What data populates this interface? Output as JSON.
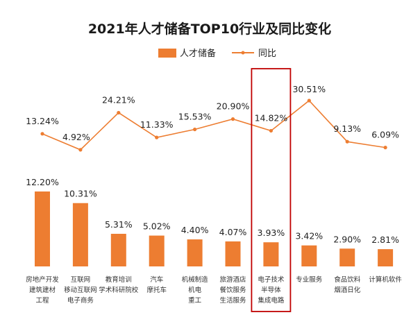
{
  "chart_data": {
    "type": "bar",
    "title": "2021年人才储备TOP10行业及同比变化",
    "legend": [
      "人才储备",
      "同比"
    ],
    "legend_position": "top-center",
    "categories": [
      [
        "房地产开发",
        "建筑建材",
        "工程"
      ],
      [
        "互联网",
        "移动互联网",
        "电子商务"
      ],
      [
        "教育培训",
        "学术科研院校"
      ],
      [
        "汽车",
        "摩托车"
      ],
      [
        "机械制造",
        "机电",
        "重工"
      ],
      [
        "旅游酒店",
        "餐饮服务",
        "生活服务"
      ],
      [
        "电子技术",
        "半导体",
        "集成电路"
      ],
      [
        "专业服务"
      ],
      [
        "食品饮料",
        "烟酒日化"
      ],
      [
        "计算机软件"
      ]
    ],
    "series": [
      {
        "name": "人才储备",
        "type": "bar",
        "values": [
          12.2,
          10.31,
          5.31,
          5.02,
          4.4,
          4.07,
          3.93,
          3.42,
          2.9,
          2.81
        ],
        "labels": [
          "12.20%",
          "10.31%",
          "5.31%",
          "5.02%",
          "4.40%",
          "4.07%",
          "3.93%",
          "3.42%",
          "2.90%",
          "2.81%"
        ]
      },
      {
        "name": "同比",
        "type": "line",
        "values": [
          13.24,
          4.92,
          24.21,
          11.33,
          15.53,
          20.9,
          14.82,
          30.51,
          9.13,
          6.09
        ],
        "labels": [
          "13.24%",
          "4.92%",
          "24.21%",
          "11.33%",
          "15.53%",
          "20.90%",
          "14.82%",
          "30.51%",
          "9.13%",
          "6.09%"
        ]
      }
    ],
    "highlight_category": 6,
    "colors": {
      "bar": "#ED7D31",
      "line": "#ED7D31",
      "highlight_box": "#C00000"
    }
  }
}
